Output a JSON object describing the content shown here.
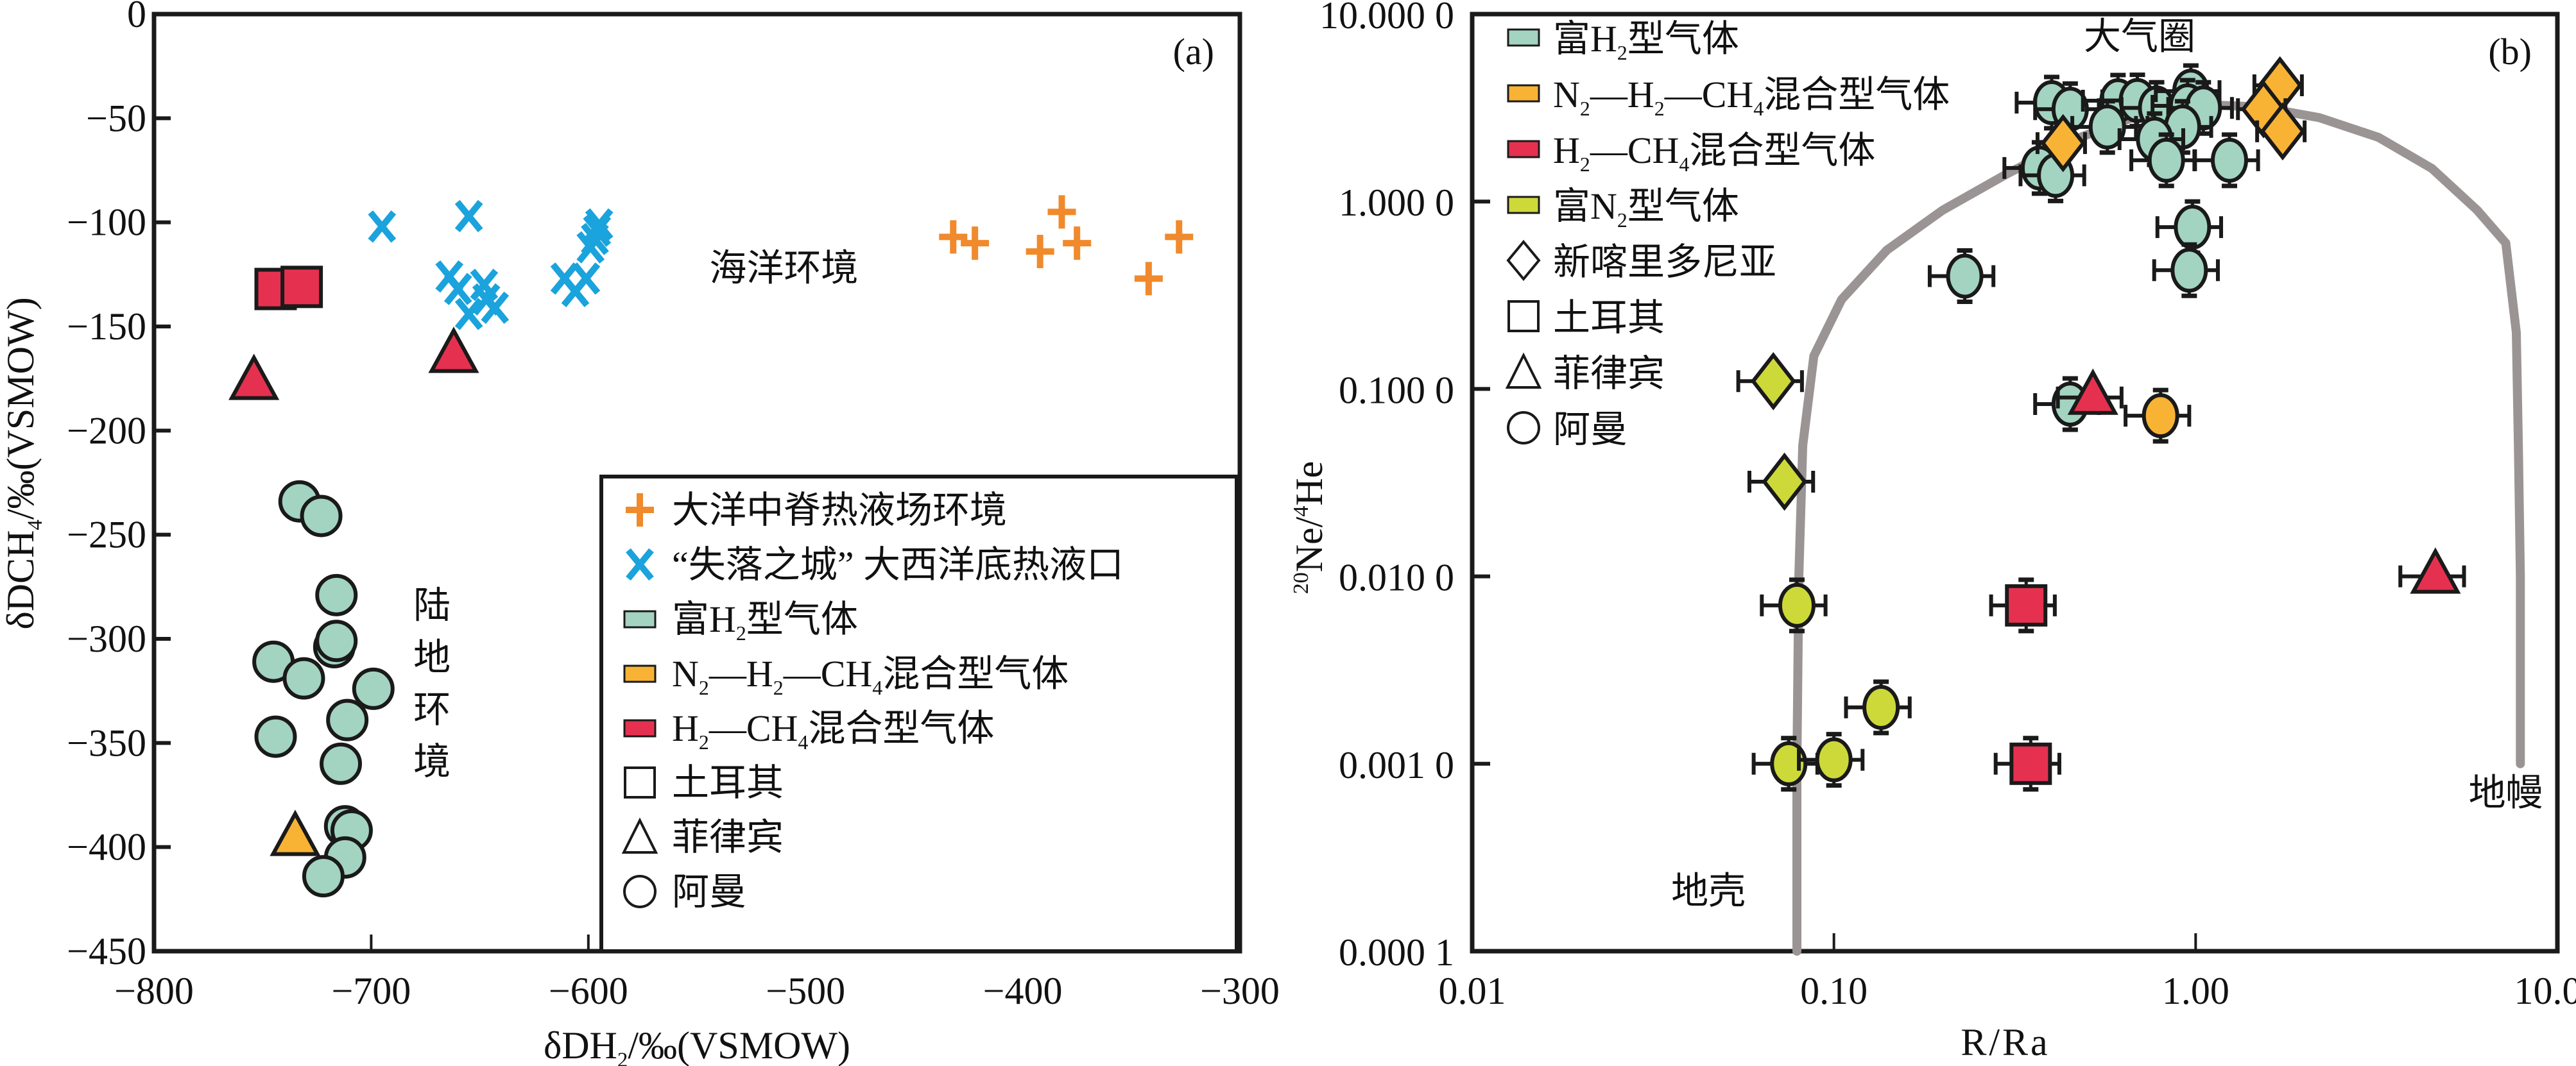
{
  "chart_data": [
    {
      "type": "scatter",
      "panel_label": "(a)",
      "xlabel": {
        "main": "δD",
        "sub": "H₂",
        "unit": "/‰(VSMOW)"
      },
      "ylabel": {
        "main": "δD",
        "sub": "CH₄",
        "unit": "/‰(VSMOW)"
      },
      "xlim": [
        -800,
        -300
      ],
      "ylim": [
        -450,
        0
      ],
      "xticks": [
        -800,
        -700,
        -600,
        -500,
        -400,
        -300
      ],
      "xtick_labels": [
        "−800",
        "−700",
        "−600",
        "−500",
        "−400",
        "−300"
      ],
      "yticks": [
        0,
        -50,
        -100,
        -150,
        -200,
        -250,
        -300,
        -350,
        -400,
        -450
      ],
      "ytick_labels": [
        "0",
        "−50",
        "−100",
        "−150",
        "−200",
        "−250",
        "−300",
        "−350",
        "−400",
        "−450"
      ],
      "grid": false,
      "legend_position": "bottom-right",
      "annotations": [
        {
          "text": "海洋环境",
          "x": -510,
          "y": -128
        },
        {
          "text": "陆",
          "x": -672,
          "y": -290
        },
        {
          "text": "地",
          "x": -672,
          "y": -315
        },
        {
          "text": "环",
          "x": -672,
          "y": -340
        },
        {
          "text": "境",
          "x": -672,
          "y": -365
        }
      ],
      "legend": [
        {
          "label": "大洋中脊热液场环境",
          "marker": "plus",
          "color": "#f08a2c"
        },
        {
          "label": "“失落之城” 大西洋底热液口",
          "marker": "x",
          "color": "#1aa3dc"
        },
        {
          "label": "富H₂型气体",
          "marker": "rect",
          "color": "#a3d3c1"
        },
        {
          "label": "N₂—H₂—CH₄混合型气体",
          "marker": "rect",
          "color": "#f8b334"
        },
        {
          "label": "H₂—CH₄混合型气体",
          "marker": "rect",
          "color": "#e5314f"
        },
        {
          "label": "土耳其",
          "marker": "square-open",
          "color": "#111111"
        },
        {
          "label": "菲律宾",
          "marker": "triangle-open",
          "color": "#111111"
        },
        {
          "label": "阿曼",
          "marker": "circle-open",
          "color": "#111111"
        }
      ],
      "series": [
        {
          "name": "大洋中脊热液场环境",
          "marker": "plus",
          "color": "#f08a2c",
          "points": [
            [
              -432,
              -107
            ],
            [
              -422,
              -110
            ],
            [
              -392,
              -114
            ],
            [
              -382,
              -95
            ],
            [
              -375,
              -110
            ],
            [
              -342,
              -127
            ],
            [
              -328,
              -107
            ]
          ]
        },
        {
          "name": "“失落之城” 大西洋底热液口",
          "marker": "x",
          "color": "#1aa3dc",
          "points": [
            [
              -695,
              -102
            ],
            [
              -655,
              -97
            ],
            [
              -664,
              -126
            ],
            [
              -660,
              -132
            ],
            [
              -655,
              -144
            ],
            [
              -648,
              -130
            ],
            [
              -647,
              -137
            ],
            [
              -643,
              -141
            ],
            [
              -611,
              -127
            ],
            [
              -606,
              -133
            ],
            [
              -601,
              -127
            ],
            [
              -599,
              -112
            ],
            [
              -597,
              -108
            ],
            [
              -596,
              -104
            ],
            [
              -595,
              -101
            ]
          ]
        },
        {
          "name": "土耳其 H₂—CH₄",
          "marker": "square",
          "color": "#e5314f",
          "points": [
            [
              -744,
              -132
            ],
            [
              -732,
              -131
            ]
          ]
        },
        {
          "name": "菲律宾 H₂—CH₄",
          "marker": "triangle",
          "color": "#e5314f",
          "points": [
            [
              -754,
              -177
            ],
            [
              -662,
              -164
            ]
          ]
        },
        {
          "name": "菲律宾 N₂—H₂—CH₄",
          "marker": "triangle",
          "color": "#f8b334",
          "points": [
            [
              -735,
              -396
            ]
          ]
        },
        {
          "name": "阿曼 富H₂",
          "marker": "circle",
          "color": "#a3d3c1",
          "points": [
            [
              -733,
              -234
            ],
            [
              -723,
              -241
            ],
            [
              -716,
              -279
            ],
            [
              -717,
              -304
            ],
            [
              -716,
              -301
            ],
            [
              -745,
              -311
            ],
            [
              -731,
              -319
            ],
            [
              -699,
              -324
            ],
            [
              -711,
              -339
            ],
            [
              -744,
              -347
            ],
            [
              -714,
              -360
            ],
            [
              -712,
              -390
            ],
            [
              -709,
              -392
            ],
            [
              -712,
              -405
            ],
            [
              -722,
              -414
            ]
          ]
        }
      ]
    },
    {
      "type": "scatter",
      "panel_label": "(b)",
      "xlabel": "R/Ra",
      "ylabel": {
        "sup1": "20",
        "main1": "Ne/",
        "sup2": "4",
        "main2": "He"
      },
      "xscale": "log",
      "yscale": "log",
      "xlim": [
        0.01,
        10
      ],
      "ylim": [
        0.0001,
        10
      ],
      "xticks": [
        0.01,
        0.1,
        1,
        10
      ],
      "xtick_labels": [
        "0.01",
        "0.10",
        "1.00",
        "10.00"
      ],
      "yticks": [
        10,
        1,
        0.1,
        0.01,
        0.001,
        0.0001
      ],
      "ytick_labels": [
        "10.000 0",
        "1.000 0",
        "0.100 0",
        "0.010 0",
        "0.001 0",
        "0.000 1"
      ],
      "grid": false,
      "legend_position": "top-left",
      "annotations": [
        {
          "text": "大气圈",
          "x": 0.7,
          "y": 6.5
        },
        {
          "text": "地壳",
          "x": 0.045,
          "y": 0.00018
        },
        {
          "text": "地幔",
          "x": 7.2,
          "y": 0.0006
        }
      ],
      "mixing_curve": {
        "color": "#9b9495",
        "points": [
          [
            0.079,
            0.0001
          ],
          [
            0.079,
            0.001
          ],
          [
            0.08,
            0.01
          ],
          [
            0.082,
            0.05
          ],
          [
            0.088,
            0.15
          ],
          [
            0.105,
            0.3
          ],
          [
            0.14,
            0.55
          ],
          [
            0.2,
            0.9
          ],
          [
            0.3,
            1.4
          ],
          [
            0.45,
            2.1
          ],
          [
            0.7,
            2.9
          ],
          [
            1.0,
            3.3
          ],
          [
            1.5,
            3.2
          ],
          [
            2.2,
            2.8
          ],
          [
            3.2,
            2.2
          ],
          [
            4.5,
            1.5
          ],
          [
            6.0,
            0.9
          ],
          [
            7.2,
            0.6
          ],
          [
            7.7,
            0.2
          ],
          [
            7.8,
            0.05
          ],
          [
            7.9,
            0.01
          ],
          [
            7.9,
            0.001
          ]
        ]
      },
      "legend": [
        {
          "label": "富H₂型气体",
          "marker": "rect",
          "color": "#a3d3c1"
        },
        {
          "label": "N₂—H₂—CH₄混合型气体",
          "marker": "rect",
          "color": "#f8b334"
        },
        {
          "label": "H₂—CH₄混合型气体",
          "marker": "rect",
          "color": "#e5314f"
        },
        {
          "label": "富N₂型气体",
          "marker": "rect",
          "color": "#cdd939"
        },
        {
          "label": "新喀里多尼亚",
          "marker": "diamond-open",
          "color": "#111111"
        },
        {
          "label": "土耳其",
          "marker": "square-open",
          "color": "#111111"
        },
        {
          "label": "菲律宾",
          "marker": "triangle-open",
          "color": "#111111"
        },
        {
          "label": "阿曼",
          "marker": "circle-open",
          "color": "#111111"
        }
      ],
      "series": [
        {
          "name": "阿曼 富H₂",
          "marker": "circle",
          "color": "#a3d3c1",
          "xerr_frac": 0.2,
          "yerr_frac": 0.15,
          "points": [
            [
              0.4,
              3.37
            ],
            [
              0.45,
              3.11
            ],
            [
              0.61,
              3.45
            ],
            [
              0.69,
              3.46
            ],
            [
              0.78,
              3.16
            ],
            [
              0.97,
              3.88
            ],
            [
              0.95,
              3.24
            ],
            [
              1.05,
              3.16
            ],
            [
              0.57,
              2.5
            ],
            [
              0.92,
              2.5
            ],
            [
              0.77,
              2.15
            ],
            [
              0.83,
              1.66
            ],
            [
              1.24,
              1.66
            ],
            [
              0.37,
              1.51
            ],
            [
              0.41,
              1.38
            ],
            [
              0.98,
              0.73
            ],
            [
              0.96,
              0.43
            ],
            [
              0.23,
              0.4
            ],
            [
              0.45,
              0.083
            ]
          ]
        },
        {
          "name": "阿曼 N₂—H₂—CH₄",
          "marker": "circle",
          "color": "#f8b334",
          "xerr_frac": 0.2,
          "yerr_frac": 0.15,
          "points": [
            [
              0.8,
              0.072
            ]
          ]
        },
        {
          "name": "新喀里多尼亚 N₂—H₂—CH₄",
          "marker": "diamond",
          "color": "#f8b334",
          "xerr_frac": 0.15,
          "yerr_frac": 0,
          "points": [
            [
              1.71,
              4.17
            ],
            [
              1.54,
              3.11
            ],
            [
              1.74,
              2.37
            ],
            [
              0.43,
              2.05
            ]
          ]
        },
        {
          "name": "新喀里多尼亚 富N₂",
          "marker": "diamond",
          "color": "#cdd939",
          "xerr_frac": 0.2,
          "yerr_frac": 0,
          "points": [
            [
              0.068,
              0.11
            ],
            [
              0.073,
              0.032
            ]
          ]
        },
        {
          "name": "菲律宾 H₂—CH₄",
          "marker": "triangle",
          "color": "#e5314f",
          "xerr_frac": 0.2,
          "yerr_frac": 0,
          "points": [
            [
              0.52,
              0.09
            ],
            [
              4.6,
              0.01
            ]
          ]
        },
        {
          "name": "土耳其 H₂—CH₄",
          "marker": "square",
          "color": "#e5314f",
          "xerr_frac": 0.2,
          "yerr_frac": 0.15,
          "points": [
            [
              0.34,
              0.007
            ],
            [
              0.35,
              0.001
            ]
          ]
        },
        {
          "name": "阿曼 富N₂",
          "marker": "circle",
          "color": "#cdd939",
          "xerr_frac": 0.2,
          "yerr_frac": 0.15,
          "points": [
            [
              0.079,
              0.007
            ],
            [
              0.075,
              0.001
            ],
            [
              0.1,
              0.00105
            ],
            [
              0.135,
              0.002
            ]
          ]
        }
      ]
    }
  ]
}
